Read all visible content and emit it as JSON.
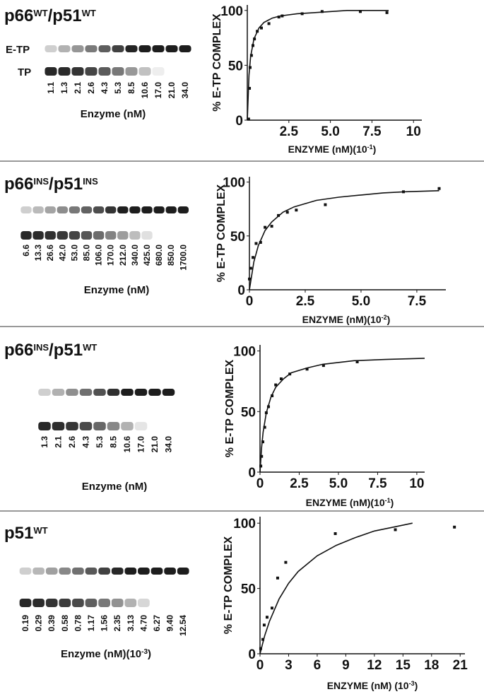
{
  "panels": [
    {
      "title": [
        "p66",
        "WT",
        "/p51",
        "WT"
      ],
      "gel": {
        "band_labels": [
          "E-TP",
          "TP"
        ],
        "lanes": [
          "1.1",
          "1.3",
          "2.1",
          "2.6",
          "4.3",
          "5.3",
          "8.5",
          "10.6",
          "17.0",
          "21.0",
          "34.0"
        ],
        "xlabel": [
          "Enzyme (nM)"
        ]
      }
    },
    {
      "title": [
        "p66",
        "INS",
        "/p51",
        "INS"
      ],
      "gel": {
        "lanes": [
          "6.6",
          "13.3",
          "26.6",
          "42.0",
          "53.0",
          "85.0",
          "106.0",
          "170.0",
          "212.0",
          "340.0",
          "425.0",
          "680.0",
          "850.0",
          "1700.0"
        ],
        "xlabel": [
          "Enzyme (nM)"
        ]
      }
    },
    {
      "title": [
        "p66",
        "INS",
        "/p51",
        "WT"
      ],
      "gel": {
        "lanes": [
          "1.3",
          "2.1",
          "2.6",
          "4.3",
          "5.3",
          "8.5",
          "10.6",
          "17.0",
          "21.0",
          "34.0"
        ],
        "xlabel": [
          "Enzyme (nM)"
        ]
      }
    },
    {
      "title": [
        "p51",
        "WT"
      ],
      "gel": {
        "lanes": [
          "0.19",
          "0.29",
          "0.39",
          "0.58",
          "0.78",
          "1.17",
          "1.56",
          "2.35",
          "3.13",
          "4.70",
          "6.27",
          "9.40",
          "12.54"
        ],
        "xlabel": [
          "Enzyme (nM)(10",
          "-3",
          ")"
        ]
      }
    }
  ],
  "chart_data": [
    {
      "type": "scatter",
      "xlabel": [
        "ENZYME (nM)(10",
        "-1",
        ")"
      ],
      "ylabel": "% E-TP COMPLEX",
      "xlim": [
        0,
        10.5
      ],
      "ylim": [
        0,
        105
      ],
      "xticks": [
        2.5,
        {
          "value": 5,
          "label": "5.0"
        },
        7.5,
        10
      ],
      "yticks": [
        0,
        50,
        100
      ],
      "series": [
        {
          "mode": "markers",
          "color": "#111111",
          "x": [
            0.08,
            0.13,
            0.17,
            0.25,
            0.34,
            0.43,
            0.6,
            0.85,
            1.3,
            1.9,
            2.1,
            3.3,
            4.5,
            6.8,
            8.4
          ],
          "values": [
            1,
            29,
            48,
            59,
            68,
            74,
            81,
            84,
            88,
            94,
            95,
            97,
            99,
            99,
            98
          ]
        },
        {
          "mode": "line",
          "color": "#111111",
          "x": [
            0,
            0.1,
            0.2,
            0.4,
            0.7,
            1,
            1.5,
            2,
            3,
            4,
            6,
            8.5
          ],
          "values": [
            0,
            41,
            58,
            74,
            84,
            89,
            93,
            95,
            97,
            98,
            100,
            100
          ]
        }
      ]
    },
    {
      "type": "scatter",
      "xlabel": [
        "ENZYME  (nM)(10",
        "-2",
        ")"
      ],
      "ylabel": "% E-TP COMPLEX",
      "xlim": [
        0,
        8.8
      ],
      "ylim": [
        0,
        105
      ],
      "xticks": [
        0,
        2.5,
        {
          "value": 5,
          "label": "5.0"
        },
        7.5
      ],
      "yticks": [
        0,
        50,
        100
      ],
      "series": [
        {
          "mode": "markers",
          "color": "#111111",
          "x": [
            0,
            0.06,
            0.16,
            0.3,
            0.5,
            0.7,
            1.0,
            1.3,
            1.7,
            2.1,
            3.4,
            6.9,
            8.5
          ],
          "values": [
            10,
            20,
            30,
            43,
            44,
            58,
            59,
            69,
            72,
            74,
            79,
            91,
            94
          ]
        },
        {
          "mode": "line",
          "color": "#111111",
          "x": [
            0,
            0.2,
            0.4,
            0.7,
            1,
            1.5,
            2,
            3,
            4,
            5,
            6,
            7,
            8.5
          ],
          "values": [
            0,
            26,
            41,
            55,
            63,
            72,
            77,
            83,
            86,
            88,
            90,
            91,
            92
          ]
        }
      ]
    },
    {
      "type": "scatter",
      "xlabel": [
        "ENZYME  (nM)(10",
        "-1",
        ")"
      ],
      "ylabel": "% E-TP COMPLEX",
      "xlim": [
        0,
        10.5
      ],
      "ylim": [
        0,
        105
      ],
      "xticks": [
        0,
        2.5,
        {
          "value": 5,
          "label": "5.0"
        },
        7.5,
        10
      ],
      "yticks": [
        0,
        50,
        100
      ],
      "series": [
        {
          "mode": "markers",
          "color": "#111111",
          "x": [
            0.05,
            0.1,
            0.18,
            0.3,
            0.4,
            0.54,
            0.77,
            1.0,
            1.35,
            1.9,
            3.0,
            4.05,
            6.2
          ],
          "values": [
            5,
            13,
            25,
            37,
            49,
            54,
            63,
            72,
            77,
            81,
            85,
            88,
            91
          ]
        },
        {
          "mode": "line",
          "color": "#111111",
          "x": [
            0,
            0.1,
            0.2,
            0.4,
            0.7,
            1,
            1.5,
            2,
            3,
            4,
            6,
            8,
            10.5
          ],
          "values": [
            0,
            20,
            33,
            49,
            62,
            70,
            77,
            82,
            86,
            89,
            92,
            93,
            94
          ]
        }
      ]
    },
    {
      "type": "scatter",
      "xlabel": [
        "ENZYME  (nM) (10",
        "-3",
        ")"
      ],
      "ylabel": "% E-TP COMPLEX",
      "xlim": [
        0,
        21.5
      ],
      "ylim": [
        0,
        105
      ],
      "xticks": [
        0,
        3,
        6,
        9,
        12,
        15,
        18,
        21
      ],
      "yticks": [
        0,
        50,
        100
      ],
      "series": [
        {
          "mode": "markers",
          "color": "#111111",
          "x": [
            0.07,
            0.3,
            0.44,
            0.74,
            1.26,
            1.85,
            2.7,
            7.9,
            14.2,
            20.4
          ],
          "values": [
            4,
            11,
            22,
            28,
            35,
            58,
            70,
            92,
            95,
            97
          ]
        },
        {
          "mode": "line",
          "color": "#111111",
          "x": [
            0,
            0.5,
            1,
            2,
            3,
            4,
            6,
            8,
            10,
            12,
            14,
            16
          ],
          "values": [
            0,
            14,
            25,
            42,
            54,
            63,
            75,
            83,
            89,
            94,
            97,
            100
          ]
        }
      ]
    }
  ]
}
